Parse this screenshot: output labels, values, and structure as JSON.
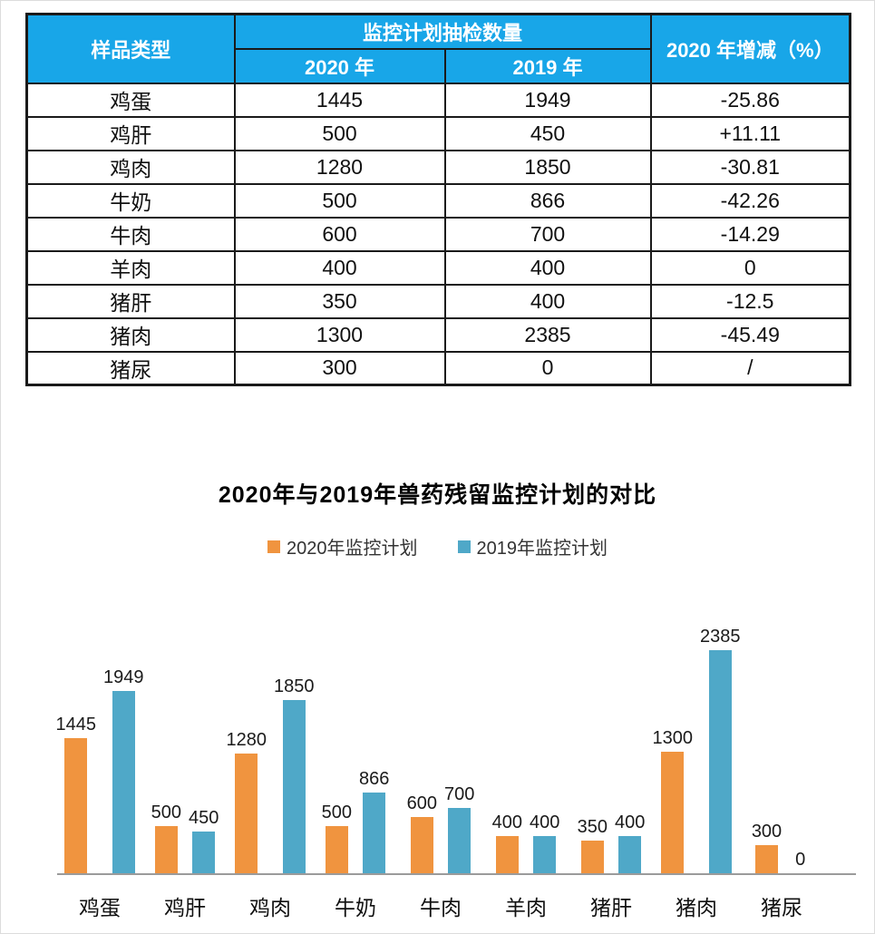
{
  "table": {
    "header": {
      "col_sample_type": "样品类型",
      "col_group": "监控计划抽检数量",
      "col_2020": "2020 年",
      "col_2019": "2019 年",
      "col_change": "2020 年增减（%）"
    },
    "rows": [
      {
        "type": "鸡蛋",
        "y2020": "1445",
        "y2019": "1949",
        "change": "-25.86"
      },
      {
        "type": "鸡肝",
        "y2020": "500",
        "y2019": "450",
        "change": "+11.11"
      },
      {
        "type": "鸡肉",
        "y2020": "1280",
        "y2019": "1850",
        "change": "-30.81"
      },
      {
        "type": "牛奶",
        "y2020": "500",
        "y2019": "866",
        "change": "-42.26"
      },
      {
        "type": "牛肉",
        "y2020": "600",
        "y2019": "700",
        "change": "-14.29"
      },
      {
        "type": "羊肉",
        "y2020": "400",
        "y2019": "400",
        "change": "0"
      },
      {
        "type": "猪肝",
        "y2020": "350",
        "y2019": "400",
        "change": "-12.5"
      },
      {
        "type": "猪肉",
        "y2020": "1300",
        "y2019": "2385",
        "change": "-45.49"
      },
      {
        "type": "猪尿",
        "y2020": "300",
        "y2019": "0",
        "change": "/"
      }
    ]
  },
  "chart_data": {
    "type": "bar",
    "title": "2020年与2019年兽药残留监控计划的对比",
    "categories": [
      "鸡蛋",
      "鸡肝",
      "鸡肉",
      "牛奶",
      "牛肉",
      "羊肉",
      "猪肝",
      "猪肉",
      "猪尿"
    ],
    "series": [
      {
        "name": "2020年监控计划",
        "color": "#F0943F",
        "values": [
          1445,
          500,
          1280,
          500,
          600,
          400,
          350,
          1300,
          300
        ]
      },
      {
        "name": "2019年监控计划",
        "color": "#4FA8C8",
        "values": [
          1949,
          450,
          1850,
          866,
          700,
          400,
          400,
          2385,
          0
        ]
      }
    ],
    "ylim": [
      0,
      2385
    ],
    "grid": false,
    "legend_position": "top",
    "data_labels": true,
    "xlabel": "",
    "ylabel": ""
  },
  "colors": {
    "header_bg": "#18A6E8",
    "header_text": "#FFFFFF",
    "table_border": "#1A1A1A",
    "axis_line": "#9B9B9B",
    "bar_2020": "#F0943F",
    "bar_2019": "#4FA8C8"
  }
}
